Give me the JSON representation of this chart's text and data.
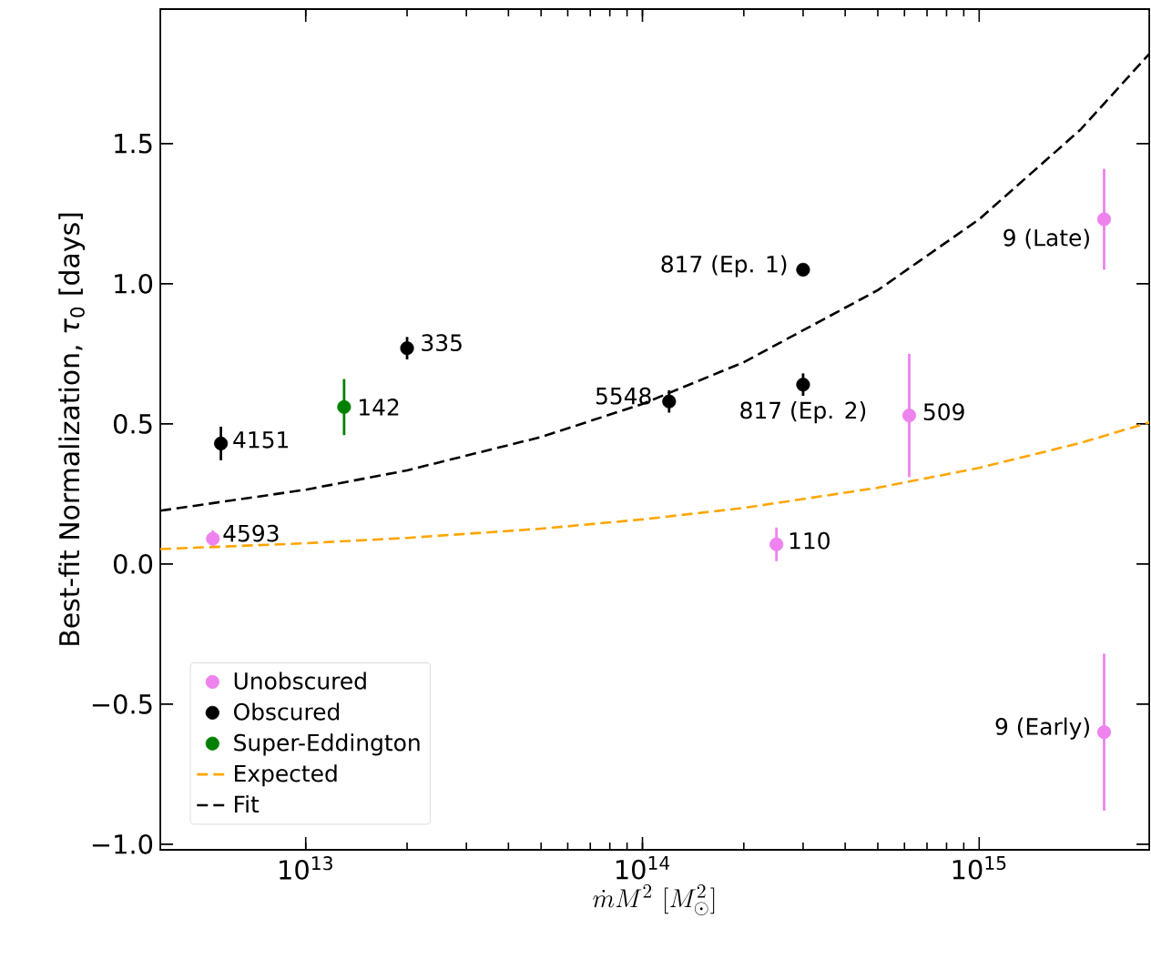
{
  "chart_data": {
    "type": "scatter",
    "xlabel": "\\dot{m}M^{2}\\ [M_{\\odot}^{2}]",
    "ylabel": "Best-fit Normalization, *τ*$_{0}$ [days]",
    "log": "x",
    "legend": "bottom left",
    "grid": false,
    "xlim": [
      3700000000000.0,
      3200000000000000.0
    ],
    "xticks": [
      {
        "value": 10000000000000.0,
        "label": "10$^{13}$"
      },
      {
        "value": 100000000000000.0,
        "label": "10$^{14}$"
      },
      {
        "value": 1000000000000000.0,
        "label": "10$^{15}$"
      }
    ],
    "ylim": [
      -1.02,
      1.98
    ],
    "yticks": [
      {
        "value": -1,
        "label": "−1.0"
      },
      {
        "value": -0.5,
        "label": "−0.5"
      },
      {
        "value": 0,
        "label": "0.0"
      },
      {
        "value": 0.5,
        "label": "0.5"
      },
      {
        "value": 1,
        "label": "1.0"
      },
      {
        "value": 1.5,
        "label": "1.5"
      }
    ],
    "series": [
      {
        "name": "Unobscured",
        "marker": "circle",
        "color": "#ee82ee",
        "x": [
          5300000000000.0,
          250000000000000.0,
          620000000000000.0,
          2350000000000000.0,
          2350000000000000.0
        ],
        "values": [
          0.09,
          0.07,
          0.53,
          1.23,
          -0.6
        ],
        "errors": [
          0.03,
          0.06,
          0.22,
          0.18,
          0.28
        ]
      },
      {
        "name": "Obscured",
        "marker": "circle",
        "color": "#000000",
        "x": [
          5600000000000.0,
          20000000000000.0,
          120000000000000.0,
          300000000000000.0,
          300000000000000.0
        ],
        "values": [
          0.43,
          0.77,
          0.58,
          1.05,
          0.64
        ],
        "errors": [
          0.06,
          0.04,
          0.04,
          0.02,
          0.04
        ]
      },
      {
        "name": "Super-Eddington",
        "marker": "circle",
        "color": "#008000",
        "x": [
          13000000000000.0
        ],
        "values": [
          0.56
        ],
        "errors": [
          0.1
        ]
      },
      {
        "name": "Expected",
        "type": "line",
        "marker": "none",
        "color": "#ffa500",
        "line_style": "dashed",
        "x": [
          3700000000000.0,
          10000000000000.0,
          20000000000000.0,
          50000000000000.0,
          100000000000000.0,
          200000000000000.0,
          500000000000000.0,
          1000000000000000.0,
          2000000000000000.0,
          3200000000000000.0
        ],
        "values": [
          0.053,
          0.074,
          0.093,
          0.126,
          0.159,
          0.2,
          0.272,
          0.343,
          0.432,
          0.505
        ]
      },
      {
        "name": "Fit",
        "type": "line",
        "marker": "none",
        "color": "#000000",
        "line_style": "dashed",
        "x": [
          3700000000000.0,
          10000000000000.0,
          20000000000000.0,
          50000000000000.0,
          100000000000000.0,
          200000000000000.0,
          500000000000000.0,
          1000000000000000.0,
          2000000000000000.0,
          3200000000000000.0
        ],
        "values": [
          0.19,
          0.265,
          0.334,
          0.453,
          0.571,
          0.72,
          0.977,
          1.23,
          1.55,
          1.82
        ]
      }
    ],
    "annotations": [
      {
        "text": "4151",
        "x": 5600000000000.0,
        "y": 0.43
      },
      {
        "text": "142",
        "x": 13000000000000.0,
        "y": 0.56
      },
      {
        "text": "335",
        "x": 20000000000000.0,
        "y": 0.77
      },
      {
        "text": "5548",
        "x": 120000000000000.0,
        "y": 0.58
      },
      {
        "text": "817 (Ep. 1)",
        "x": 300000000000000.0,
        "y": 1.05
      },
      {
        "text": "817 (Ep. 2)",
        "x": 300000000000000.0,
        "y": 0.64
      },
      {
        "text": "509",
        "x": 620000000000000.0,
        "y": 0.53
      },
      {
        "text": "9 (Late)",
        "x": 2350000000000000.0,
        "y": 1.23
      },
      {
        "text": "4593",
        "x": 5300000000000.0,
        "y": 0.09
      },
      {
        "text": "110",
        "x": 250000000000000.0,
        "y": 0.07
      },
      {
        "text": "9 (Early)",
        "x": 2350000000000000.0,
        "y": -0.6
      }
    ]
  }
}
